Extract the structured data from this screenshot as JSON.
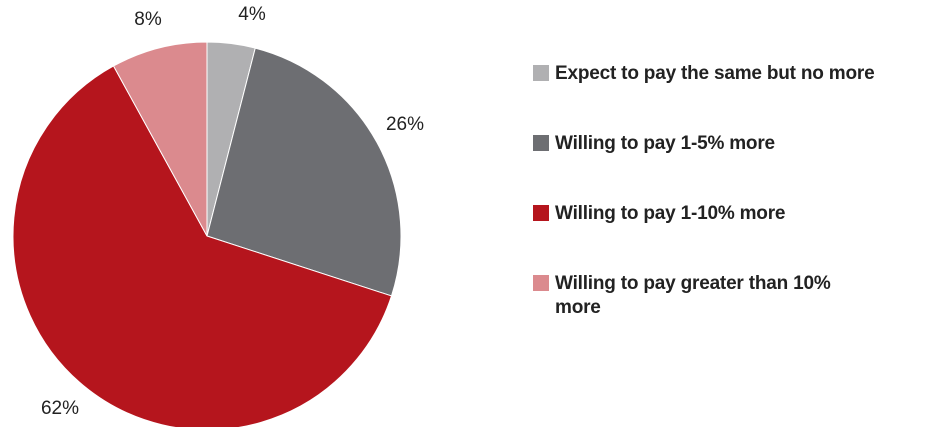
{
  "chart_data": {
    "type": "pie",
    "title": "",
    "slices": [
      {
        "label": "Expect to pay the same but no more",
        "value": 4,
        "value_label": "4%",
        "color": "#b0b0b2"
      },
      {
        "label": "Willing to pay 1-5% more",
        "value": 26,
        "value_label": "26%",
        "color": "#6d6e72"
      },
      {
        "label": "Willing to pay 1-10% more",
        "value": 62,
        "value_label": "62%",
        "color": "#b5151d"
      },
      {
        "label": "Willing to pay greater than 10% more",
        "value": 8,
        "value_label": "8%",
        "color": "#db8a8e"
      }
    ],
    "start_angle": "12 o'clock",
    "direction": "clockwise",
    "legend_position": "right"
  }
}
